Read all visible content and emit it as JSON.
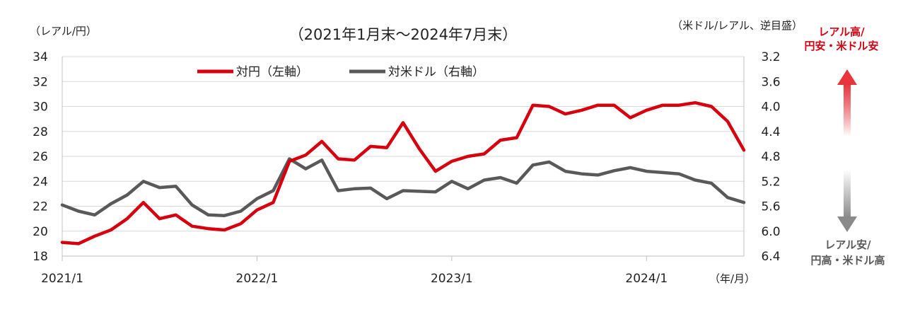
{
  "chart_data": {
    "type": "line",
    "title": "（2021年1月末～2024年7月末）",
    "left_unit": "（レアル/円）",
    "right_unit": "（米ドル/レアル、逆目盛）",
    "x_unit": "（年/月）",
    "left_ylim": [
      18,
      34
    ],
    "left_ticks": [
      "34",
      "32",
      "30",
      "28",
      "26",
      "24",
      "22",
      "20",
      "18"
    ],
    "right_ylim": [
      3.2,
      6.4
    ],
    "right_inverted": true,
    "right_ticks": [
      "3.2",
      "3.6",
      "4.0",
      "4.4",
      "4.8",
      "5.2",
      "5.6",
      "6.0",
      "6.4"
    ],
    "x_tick_labels": [
      {
        "label": "2021/1",
        "index": 0
      },
      {
        "label": "2022/1",
        "index": 12
      },
      {
        "label": "2023/1",
        "index": 24
      },
      {
        "label": "2024/1",
        "index": 36
      }
    ],
    "grid": true,
    "legend_position": "top",
    "series": [
      {
        "name": "対円（左軸）",
        "axis": "left",
        "color": "#d7000f",
        "values": [
          19.1,
          19.0,
          19.6,
          20.1,
          21.0,
          22.3,
          21.0,
          21.3,
          20.4,
          20.2,
          20.1,
          20.6,
          21.7,
          22.3,
          25.6,
          26.1,
          27.2,
          25.8,
          25.7,
          26.8,
          26.7,
          28.7,
          26.6,
          24.8,
          25.6,
          26.0,
          26.2,
          27.3,
          27.5,
          30.1,
          30.0,
          29.4,
          29.7,
          30.1,
          30.1,
          29.1,
          29.7,
          30.1,
          30.1,
          30.3,
          30.0,
          28.8,
          26.5
        ]
      },
      {
        "name": "対米ドル（右軸）",
        "axis": "right",
        "color": "#595959",
        "values": [
          5.58,
          5.68,
          5.74,
          5.56,
          5.42,
          5.2,
          5.3,
          5.28,
          5.58,
          5.74,
          5.75,
          5.68,
          5.48,
          5.35,
          4.84,
          5.0,
          4.86,
          5.35,
          5.32,
          5.31,
          5.48,
          5.35,
          5.36,
          5.37,
          5.2,
          5.32,
          5.18,
          5.14,
          5.23,
          4.94,
          4.89,
          5.04,
          5.08,
          5.1,
          5.03,
          4.98,
          5.04,
          5.06,
          5.08,
          5.18,
          5.23,
          5.46,
          5.54
        ]
      }
    ]
  },
  "annotations": {
    "top_label_line1": "レアル高/",
    "top_label_line2": "円安・米ドル安",
    "bottom_label_line1": "レアル安/",
    "bottom_label_line2": "円高・米ドル高",
    "top_color": "#d7000f",
    "bottom_color": "#595959"
  }
}
